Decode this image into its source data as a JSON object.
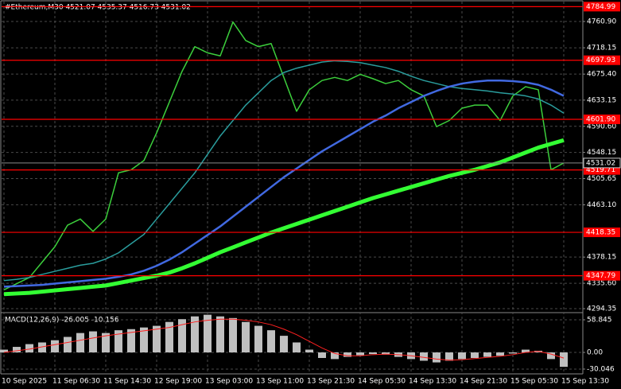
{
  "chart_data": [
    {
      "type": "line",
      "title": "#Ethereum,M30  4521.07 4535.37 4516.73 4531.02",
      "categories": [
        "10 Sep 2025",
        null,
        null,
        null,
        "11 Sep 06:30",
        null,
        null,
        null,
        "11 Sep 14:30",
        null,
        null,
        null,
        "12 Sep 19:00",
        null,
        null,
        null,
        "13 Sep 03:00",
        null,
        null,
        null,
        "13 Sep 11:00",
        null,
        null,
        null,
        "13 Sep 21:30",
        null,
        null,
        null,
        "14 Sep 05:30",
        null,
        null,
        null,
        "14 Sep 13:30",
        null,
        null,
        null,
        "14 Sep 21:30",
        null,
        null,
        null,
        "15 Sep 05:30",
        null,
        null,
        null,
        "15 Sep 13:30"
      ],
      "series": [
        {
          "color": "#3ccf3c",
          "width": 1.5,
          "values": [
            4325,
            4335,
            4345,
            4370,
            4395,
            4430,
            4440,
            4420,
            4440,
            4515,
            4520,
            4535,
            4580,
            4630,
            4680,
            4720,
            4710,
            4705,
            4760,
            4730,
            4720,
            4725,
            4670,
            4615,
            4650,
            4665,
            4670,
            4665,
            4675,
            4668,
            4660,
            4665,
            4650,
            4640,
            4590,
            4600,
            4620,
            4625,
            4625,
            4600,
            4640,
            4655,
            4650,
            4520,
            4531.02
          ]
        },
        {
          "color": "#2a9d9d",
          "width": 1.5,
          "values": [
            4340,
            4342,
            4345,
            4350,
            4355,
            4360,
            4365,
            4368,
            4375,
            4385,
            4400,
            4415,
            4440,
            4465,
            4490,
            4515,
            4545,
            4575,
            4600,
            4625,
            4645,
            4665,
            4678,
            4685,
            4690,
            4695,
            4697,
            4696,
            4694,
            4690,
            4686,
            4680,
            4672,
            4665,
            4660,
            4655,
            4652,
            4650,
            4648,
            4645,
            4643,
            4640,
            4635,
            4625,
            4612
          ]
        },
        {
          "color": "#4169e1",
          "width": 2.5,
          "values": [
            4330,
            4331,
            4332,
            4333,
            4335,
            4337,
            4339,
            4341,
            4343,
            4346,
            4350,
            4356,
            4364,
            4374,
            4386,
            4400,
            4414,
            4428,
            4444,
            4460,
            4476,
            4492,
            4508,
            4522,
            4536,
            4550,
            4562,
            4574,
            4586,
            4598,
            4608,
            4620,
            4630,
            4640,
            4648,
            4655,
            4660,
            4663,
            4665,
            4665,
            4664,
            4662,
            4658,
            4650,
            4640
          ]
        },
        {
          "color": "#33ff33",
          "width": 5,
          "values": [
            4318,
            4319,
            4320,
            4322,
            4324,
            4326,
            4328,
            4330,
            4332,
            4336,
            4340,
            4344,
            4348,
            4353,
            4360,
            4368,
            4377,
            4386,
            4394,
            4402,
            4410,
            4418,
            4425,
            4432,
            4439,
            4446,
            4453,
            4460,
            4467,
            4474,
            4480,
            4486,
            4492,
            4498,
            4504,
            4510,
            4515,
            4520,
            4526,
            4532,
            4540,
            4548,
            4556,
            4562,
            4568
          ]
        }
      ],
      "levels": [
        4784.99,
        4697.93,
        {
          "value": 4601.9,
          "label": "4601.90"
        },
        4519.71,
        4418.35,
        4347.79
      ],
      "level_color": "#ff0000",
      "current": 4531.02,
      "ylim": [
        4287.9,
        4793.2
      ],
      "yticks": [
        {
          "value": 4760.9,
          "label": "4760.90"
        },
        4718.15,
        {
          "value": 4675.4,
          "label": "4675.40"
        },
        4633.15,
        {
          "value": 4590.6,
          "label": "4590.60"
        },
        4548.15,
        4505.65,
        {
          "value": 4463.1,
          "label": "4463.10"
        },
        4378.15,
        {
          "value": 4335.6,
          "label": "4335.60"
        },
        4294.35
      ],
      "grid": true
    },
    {
      "type": "bar",
      "title": "MACD(12,26,9) -26.005 -10.156",
      "values": [
        5,
        10,
        15,
        18,
        22,
        28,
        35,
        38,
        35,
        40,
        42,
        45,
        48,
        55,
        60,
        65,
        68,
        65,
        62,
        55,
        48,
        40,
        30,
        18,
        5,
        -10,
        -12,
        -8,
        -5,
        -3,
        -4,
        -8,
        -12,
        -15,
        -18,
        -15,
        -12,
        -10,
        -8,
        -6,
        -2,
        5,
        3,
        -12,
        -26.005
      ],
      "color": "#c0c0c0",
      "signal": {
        "color": "#ff2020",
        "values": [
          0,
          3,
          6,
          10,
          14,
          18,
          22,
          26,
          30,
          33,
          36,
          39,
          42,
          45,
          50,
          55,
          58,
          60,
          60,
          58,
          55,
          50,
          42,
          32,
          20,
          8,
          -2,
          -6,
          -6,
          -4,
          -3,
          -4,
          -6,
          -9,
          -12,
          -14,
          -13,
          -11,
          -9,
          -7,
          -4,
          0,
          2,
          -3,
          -10.156
        ]
      },
      "ylim": [
        -38.7,
        68.9
      ],
      "yticks": [
        58.845,
        {
          "value": 0,
          "label": "0.00"
        },
        -30.046
      ]
    }
  ]
}
